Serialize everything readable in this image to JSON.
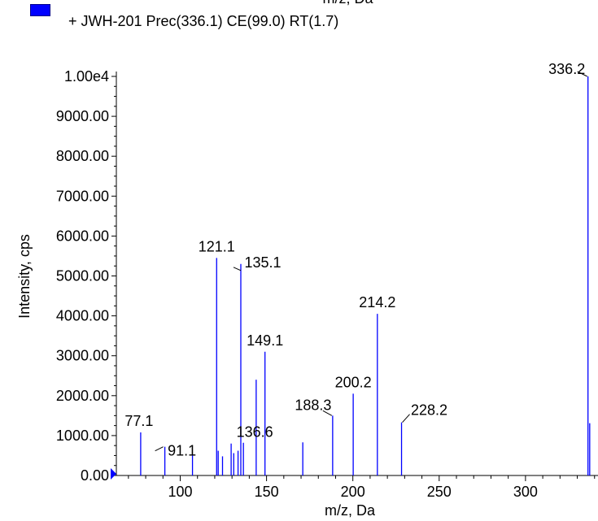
{
  "chart_data": {
    "type": "bar",
    "top_label": "m/z, Da",
    "legend": [
      {
        "name": "+ JWH-201 Prec(336.1) CE(99.0) RT(1.7)",
        "color": "#0000ff"
      }
    ],
    "xlabel": "m/z, Da",
    "ylabel": "Intensity, cps",
    "xlim": [
      63,
      342
    ],
    "ylim": [
      0,
      10000
    ],
    "x_ticks": [
      100,
      150,
      200,
      250,
      300
    ],
    "x_tick_labels": [
      "100",
      "150",
      "200",
      "250",
      "300"
    ],
    "y_ticks": [
      0,
      1000,
      2000,
      3000,
      4000,
      5000,
      6000,
      7000,
      8000,
      9000,
      10000
    ],
    "y_tick_labels": [
      "0.00",
      "1000.00",
      "2000.00",
      "3000.00",
      "4000.00",
      "5000.00",
      "6000.00",
      "7000.00",
      "8000.00",
      "9000.00",
      "1.00e4"
    ],
    "line_color": "#0000ff",
    "peaks": [
      {
        "x": 77.1,
        "y": 1080
      },
      {
        "x": 91.1,
        "y": 720
      },
      {
        "x": 107.1,
        "y": 530
      },
      {
        "x": 121.1,
        "y": 5450
      },
      {
        "x": 122.0,
        "y": 620
      },
      {
        "x": 124.5,
        "y": 480
      },
      {
        "x": 129.5,
        "y": 800
      },
      {
        "x": 131.0,
        "y": 560
      },
      {
        "x": 133.5,
        "y": 620
      },
      {
        "x": 135.1,
        "y": 5300
      },
      {
        "x": 136.6,
        "y": 820
      },
      {
        "x": 144.0,
        "y": 2400
      },
      {
        "x": 149.1,
        "y": 3100
      },
      {
        "x": 171.0,
        "y": 830
      },
      {
        "x": 188.3,
        "y": 1500
      },
      {
        "x": 200.2,
        "y": 2050
      },
      {
        "x": 214.2,
        "y": 4050
      },
      {
        "x": 228.2,
        "y": 1330
      },
      {
        "x": 336.2,
        "y": 10000
      },
      {
        "x": 337.2,
        "y": 1310
      }
    ],
    "annotations": [
      {
        "text": "77.1",
        "x": 77.1,
        "y": 1080
      },
      {
        "text": "91.1",
        "x": 91.1,
        "y": 720
      },
      {
        "text": "121.1",
        "x": 121.1,
        "y": 5450
      },
      {
        "text": "135.1",
        "x": 135.1,
        "y": 5300
      },
      {
        "text": "136.6",
        "x": 136.6,
        "y": 820
      },
      {
        "text": "149.1",
        "x": 149.1,
        "y": 3100
      },
      {
        "text": "188.3",
        "x": 188.3,
        "y": 1500
      },
      {
        "text": "200.2",
        "x": 200.2,
        "y": 2050
      },
      {
        "text": "214.2",
        "x": 214.2,
        "y": 4050
      },
      {
        "text": "228.2",
        "x": 228.2,
        "y": 1330
      },
      {
        "text": "336.2",
        "x": 336.2,
        "y": 10000
      }
    ],
    "grid": false
  }
}
